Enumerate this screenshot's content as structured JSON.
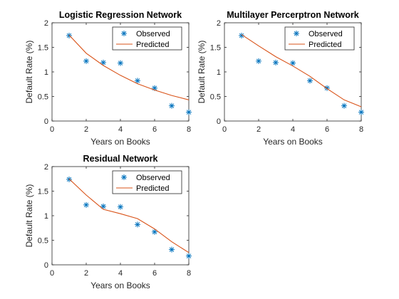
{
  "colors": {
    "observed": "#0072BD",
    "predicted": "#D95319",
    "axis": "#262626",
    "legend_border": "#262626",
    "background": "#ffffff"
  },
  "legend": {
    "observed_label": "Observed",
    "predicted_label": "Predicted",
    "observed_marker": "asterisk",
    "predicted_marker": "line",
    "placement": "top-right"
  },
  "chart_data": [
    {
      "type": "line",
      "title": "Logistic Regression Network",
      "xlabel": "Years on Books",
      "ylabel": "Default Rate (%)",
      "xlim": [
        0,
        8
      ],
      "ylim": [
        0,
        2
      ],
      "xticks": [
        "0",
        "2",
        "4",
        "6",
        "8"
      ],
      "yticks": [
        "0",
        "0.5",
        "1",
        "1.5",
        "2"
      ],
      "grid": false,
      "legend": "top-right",
      "series": [
        {
          "name": "Observed",
          "style": "asterisk",
          "x": [
            1,
            2,
            3,
            4,
            5,
            6,
            7,
            8
          ],
          "y": [
            1.74,
            1.22,
            1.19,
            1.18,
            0.82,
            0.67,
            0.31,
            0.18
          ]
        },
        {
          "name": "Predicted",
          "style": "line",
          "x": [
            1,
            2,
            3,
            4,
            5,
            6,
            7,
            8
          ],
          "y": [
            1.75,
            1.38,
            1.13,
            0.93,
            0.76,
            0.63,
            0.52,
            0.43
          ]
        }
      ]
    },
    {
      "type": "line",
      "title": "Multilayer Percerptron Network",
      "xlabel": "Years on Books",
      "ylabel": "Default Rate (%)",
      "xlim": [
        0,
        8
      ],
      "ylim": [
        0,
        2
      ],
      "xticks": [
        "0",
        "2",
        "4",
        "6",
        "8"
      ],
      "yticks": [
        "0",
        "0.5",
        "1",
        "1.5",
        "2"
      ],
      "grid": false,
      "legend": "top-right",
      "series": [
        {
          "name": "Observed",
          "style": "asterisk",
          "x": [
            1,
            2,
            3,
            4,
            5,
            6,
            7,
            8
          ],
          "y": [
            1.74,
            1.22,
            1.19,
            1.18,
            0.82,
            0.67,
            0.31,
            0.18
          ]
        },
        {
          "name": "Predicted",
          "style": "line",
          "x": [
            1,
            2,
            3,
            4,
            5,
            6,
            7,
            8
          ],
          "y": [
            1.76,
            1.53,
            1.31,
            1.12,
            0.91,
            0.66,
            0.43,
            0.29
          ]
        }
      ]
    },
    {
      "type": "line",
      "title": "Residual Network",
      "xlabel": "Years on Books",
      "ylabel": "Default Rate (%)",
      "xlim": [
        0,
        8
      ],
      "ylim": [
        0,
        2
      ],
      "xticks": [
        "0",
        "2",
        "4",
        "6",
        "8"
      ],
      "yticks": [
        "0",
        "0.5",
        "1",
        "1.5",
        "2"
      ],
      "grid": false,
      "legend": "top-right",
      "series": [
        {
          "name": "Observed",
          "style": "asterisk",
          "x": [
            1,
            2,
            3,
            4,
            5,
            6,
            7,
            8
          ],
          "y": [
            1.74,
            1.22,
            1.19,
            1.18,
            0.82,
            0.67,
            0.31,
            0.18
          ]
        },
        {
          "name": "Predicted",
          "style": "line",
          "x": [
            1,
            2,
            3,
            4,
            5,
            6,
            7,
            8
          ],
          "y": [
            1.75,
            1.42,
            1.13,
            1.04,
            0.94,
            0.73,
            0.47,
            0.25
          ]
        }
      ]
    }
  ]
}
